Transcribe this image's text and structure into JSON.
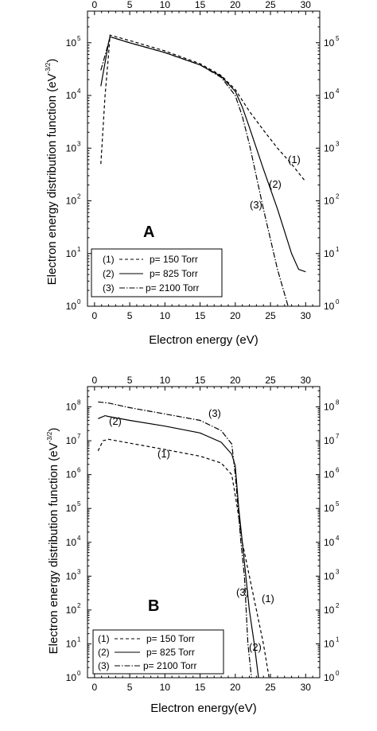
{
  "chart_data": [
    {
      "type": "line",
      "panel_label": "A",
      "xlabel": "Electron energy (eV)",
      "ylabel": "Electron energy distribution function (eV⁻³ᐟ²)",
      "ylabel_main": "Electron energy distribution function (eV",
      "ylabel_exp": "-3/2",
      "ylabel_close": ")",
      "xlim": [
        -1,
        32
      ],
      "ylim_log10": [
        0,
        5.6
      ],
      "yscale": "log",
      "x_ticks": [
        0,
        5,
        10,
        15,
        20,
        25,
        30
      ],
      "x_tick_labels": [
        "0",
        "5",
        "10",
        "15",
        "20",
        "25",
        "30"
      ],
      "y_ticks_exp": [
        0,
        1,
        2,
        3,
        4,
        5
      ],
      "y_tick_labels": [
        "10",
        "10",
        "10",
        "10",
        "10",
        "10"
      ],
      "y_tick_exponents": [
        "0",
        "1",
        "2",
        "3",
        "4",
        "5"
      ],
      "legend_placement": "bottom-left",
      "series": [
        {
          "tag": "(1)",
          "legend": "p= 150 Torr",
          "style": "dashed",
          "x": [
            0.9,
            1.5,
            2.0,
            2.2,
            5,
            10,
            15,
            18,
            20,
            22,
            24,
            26,
            28,
            30
          ],
          "y": [
            500,
            10000,
            60000,
            140000,
            110000,
            70000,
            40000,
            24000,
            13000,
            5000,
            2200,
            1000,
            500,
            230
          ]
        },
        {
          "tag": "(2)",
          "legend": "p= 825 Torr",
          "style": "solid",
          "x": [
            0.9,
            2.0,
            2.2,
            5,
            10,
            15,
            18,
            20,
            21,
            22,
            24,
            26,
            28,
            29,
            30
          ],
          "y": [
            15000,
            100000,
            130000,
            100000,
            65000,
            38000,
            23000,
            12000,
            6000,
            2500,
            400,
            70,
            10,
            5,
            4.5
          ]
        },
        {
          "tag": "(3)",
          "legend": "p= 2100 Torr",
          "style": "dashdot",
          "x": [
            0.9,
            2.0,
            2.2,
            5,
            10,
            15,
            18,
            20,
            21,
            22,
            24,
            26,
            27.5
          ],
          "y": [
            30000,
            100000,
            130000,
            100000,
            65000,
            38000,
            22000,
            10000,
            4000,
            1200,
            70,
            5,
            1
          ]
        }
      ]
    },
    {
      "type": "line",
      "panel_label": "B",
      "xlabel": "Electron energy(eV)",
      "ylabel_main": "Electron energy distribution function (eV",
      "ylabel_exp": "-3/2",
      "ylabel_close": ")",
      "xlim": [
        -1,
        32
      ],
      "ylim_log10": [
        0,
        8.6
      ],
      "yscale": "log",
      "x_ticks": [
        0,
        5,
        10,
        15,
        20,
        25,
        30
      ],
      "x_tick_labels": [
        "0",
        "5",
        "10",
        "15",
        "20",
        "25",
        "30"
      ],
      "y_ticks_exp": [
        0,
        1,
        2,
        3,
        4,
        5,
        6,
        7,
        8
      ],
      "y_tick_labels": [
        "10",
        "10",
        "10",
        "10",
        "10",
        "10",
        "10",
        "10",
        "10"
      ],
      "y_tick_exponents": [
        "0",
        "1",
        "2",
        "3",
        "4",
        "5",
        "6",
        "7",
        "8"
      ],
      "legend_placement": "bottom-left",
      "series": [
        {
          "tag": "(1)",
          "legend": "p= 150 Torr",
          "style": "dashed",
          "x": [
            0.5,
            1.2,
            2.0,
            5,
            10,
            15,
            18,
            19.5,
            20.3,
            21,
            22,
            23,
            24,
            24.8
          ],
          "y": [
            5000000,
            10000000,
            11000000,
            8500000,
            5500000,
            3500000,
            2200000,
            1000000,
            100000,
            10000,
            1000,
            100,
            10,
            1
          ]
        },
        {
          "tag": "(2)",
          "legend": "p= 825 Torr",
          "style": "solid",
          "x": [
            0.5,
            1.5,
            2.0,
            5,
            10,
            15,
            18,
            19.5,
            20,
            20.5,
            21,
            21.5,
            22,
            22.7,
            23.3
          ],
          "y": [
            45000000,
            55000000,
            52000000,
            40000000,
            27000000,
            17000000,
            9000000,
            4000000,
            1800000,
            100000,
            10000,
            1000,
            100,
            10,
            1
          ]
        },
        {
          "tag": "(3)",
          "legend": "p= 2100 Torr",
          "style": "dashdot",
          "x": [
            0.5,
            2.0,
            5,
            10,
            15,
            18,
            19.5,
            20,
            20.4,
            20.8,
            21.3,
            21.8,
            22.3
          ],
          "y": [
            140000000,
            130000000,
            95000000,
            62000000,
            40000000,
            20000000,
            8000000,
            1000000,
            100000,
            10000,
            1000,
            10,
            1
          ]
        }
      ]
    }
  ]
}
